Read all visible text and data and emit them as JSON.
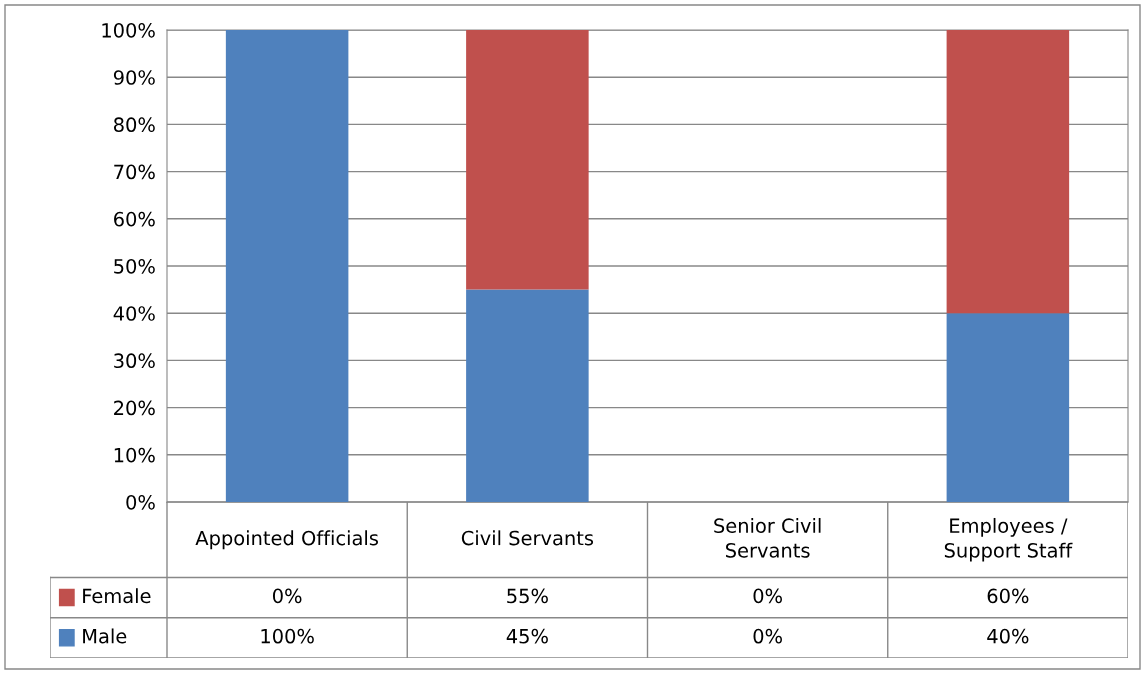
{
  "chart_data": {
    "type": "bar",
    "stacked": true,
    "categories": [
      "Appointed Officials",
      "Civil Servants",
      "Senior Civil\nServants",
      "Employees /\nSupport Staff"
    ],
    "series": [
      {
        "name": "Male",
        "color": "#4f81bd",
        "values": [
          100,
          45,
          0,
          40
        ],
        "value_labels": [
          "100%",
          "45%",
          "0%",
          "40%"
        ]
      },
      {
        "name": "Female",
        "color": "#c0504d",
        "values": [
          0,
          55,
          0,
          60
        ],
        "value_labels": [
          "0%",
          "55%",
          "0%",
          "60%"
        ]
      }
    ],
    "ylim": [
      0,
      100
    ],
    "yticks": [
      {
        "value": 0,
        "label": "0%"
      },
      {
        "value": 10,
        "label": "10%"
      },
      {
        "value": 20,
        "label": "20%"
      },
      {
        "value": 30,
        "label": "30%"
      },
      {
        "value": 40,
        "label": "40%"
      },
      {
        "value": 50,
        "label": "50%"
      },
      {
        "value": 60,
        "label": "60%"
      },
      {
        "value": 70,
        "label": "70%"
      },
      {
        "value": 80,
        "label": "80%"
      },
      {
        "value": 90,
        "label": "90%"
      },
      {
        "value": 100,
        "label": "100%"
      }
    ],
    "grid": "y",
    "legend": "bottom"
  }
}
